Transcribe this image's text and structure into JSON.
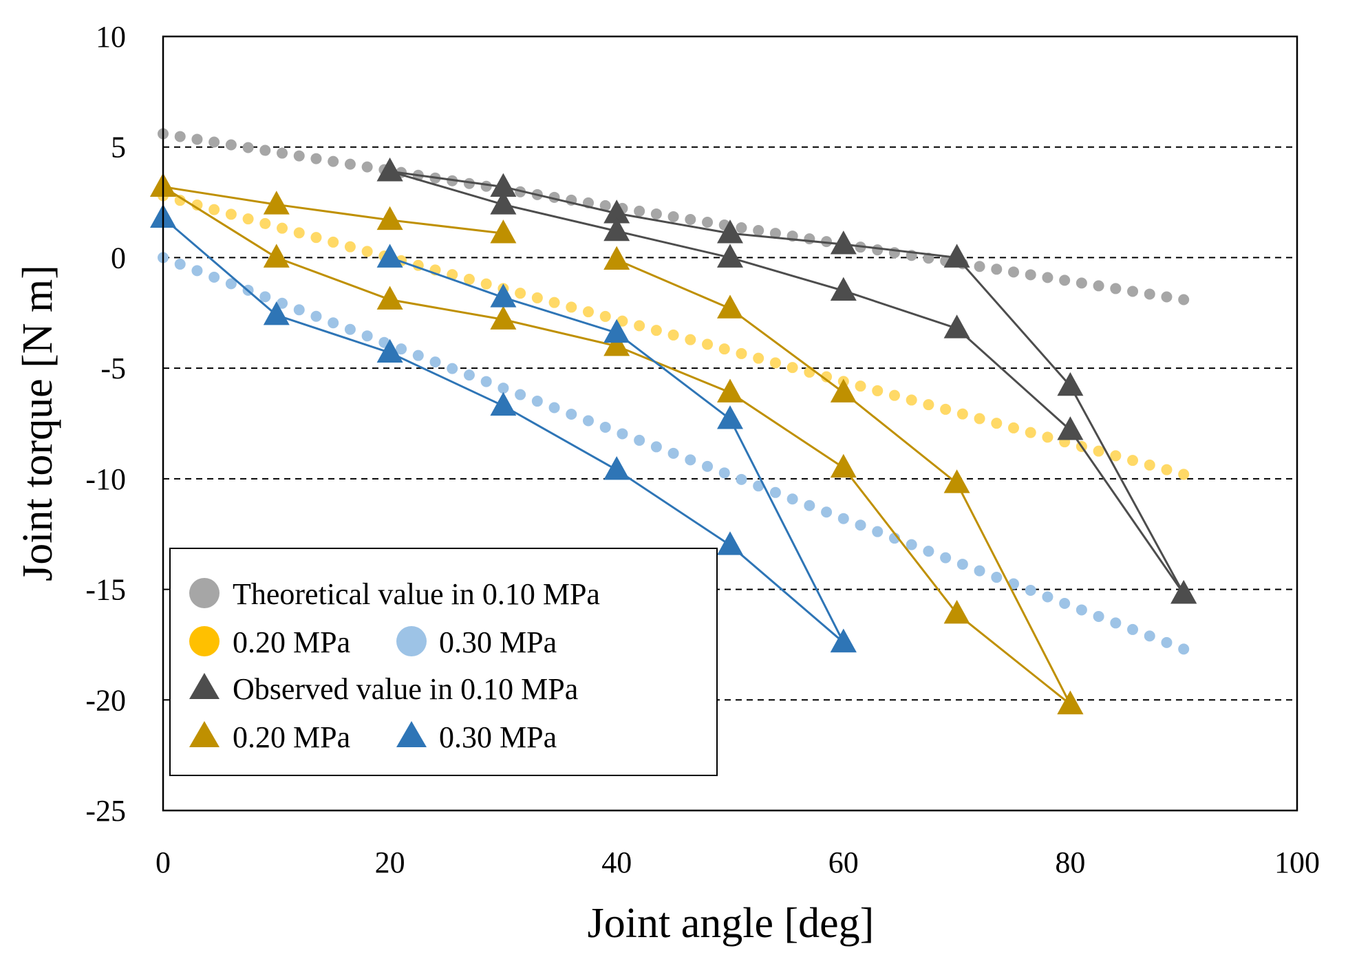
{
  "chart_data": {
    "type": "scatter",
    "xlabel": "Joint angle [deg]",
    "ylabel": "Joint torque [N m]",
    "xlim": [
      0,
      100
    ],
    "ylim": [
      -25,
      10
    ],
    "xticks": [
      0,
      20,
      40,
      60,
      80,
      100
    ],
    "yticks": [
      10,
      5,
      0,
      -5,
      -10,
      -15,
      -20,
      -25
    ],
    "grid": "horizontal-dashed",
    "legend_position": "bottom-left",
    "colors": {
      "theory_010": "#a6a6a6",
      "theory_020": "#ffd966",
      "theory_030": "#9dc3e6",
      "obs_010": "#4d4d4d",
      "obs_020": "#bf9000",
      "obs_030": "#2e75b6"
    },
    "theoretical_series": [
      {
        "name": "Theoretical value in 0.10 MPa",
        "key": "theory_010",
        "x_start": 0,
        "x_end": 90,
        "x_step": 1.5,
        "y_start": 5.6,
        "y_end": -1.9
      },
      {
        "name": "0.20 MPa",
        "key": "theory_020",
        "x_start": 0,
        "x_end": 90,
        "x_step": 1.5,
        "y_start": 2.8,
        "y_end": -9.8
      },
      {
        "name": "0.30 MPa",
        "key": "theory_030",
        "x_start": 0,
        "x_end": 90,
        "x_step": 1.5,
        "y_start": 0.0,
        "y_end": -17.7
      }
    ],
    "observed_series": [
      {
        "name": "Observed value in 0.10 MPa",
        "key": "obs_010",
        "lines": [
          [
            [
              20,
              3.9
            ],
            [
              30,
              3.2
            ],
            [
              40,
              2.0
            ],
            [
              50,
              1.1
            ],
            [
              60,
              0.6
            ],
            [
              70,
              0.0
            ],
            [
              80,
              -5.8
            ],
            [
              90,
              -15.2
            ]
          ],
          [
            [
              20,
              3.9
            ],
            [
              30,
              2.4
            ],
            [
              40,
              1.2
            ],
            [
              50,
              0.0
            ],
            [
              60,
              -1.5
            ],
            [
              70,
              -3.2
            ],
            [
              80,
              -7.8
            ],
            [
              90,
              -15.2
            ]
          ]
        ]
      },
      {
        "name": "0.20 MPa",
        "key": "obs_020",
        "lines": [
          [
            [
              0,
              3.2
            ],
            [
              10,
              2.4
            ],
            [
              20,
              1.7
            ],
            [
              30,
              1.1
            ]
          ],
          [
            [
              40,
              -0.1
            ],
            [
              50,
              -2.3
            ],
            [
              60,
              -6.1
            ],
            [
              70,
              -10.2
            ],
            [
              80,
              -20.2
            ]
          ],
          [
            [
              0,
              3.2
            ],
            [
              10,
              0.0
            ],
            [
              20,
              -1.9
            ],
            [
              30,
              -2.8
            ],
            [
              40,
              -4.0
            ],
            [
              50,
              -6.1
            ],
            [
              60,
              -9.5
            ],
            [
              70,
              -16.1
            ],
            [
              80,
              -20.2
            ]
          ]
        ]
      },
      {
        "name": "0.30 MPa",
        "key": "obs_030",
        "lines": [
          [
            [
              0,
              1.8
            ],
            [
              10,
              -2.6
            ],
            [
              20,
              -4.3
            ],
            [
              30,
              -6.7
            ],
            [
              40,
              -9.6
            ],
            [
              50,
              -13.0
            ],
            [
              60,
              -17.4
            ]
          ],
          [
            [
              20,
              0.0
            ],
            [
              30,
              -1.8
            ],
            [
              40,
              -3.4
            ],
            [
              50,
              -7.3
            ],
            [
              60,
              -17.4
            ]
          ]
        ]
      }
    ],
    "legend": {
      "theory_010_label": "Theoretical value in 0.10 MPa",
      "theory_020_label": "0.20 MPa",
      "theory_030_label": "0.30 MPa",
      "obs_010_label": "Observed value in 0.10 MPa",
      "obs_020_label": "0.20 MPa",
      "obs_030_label": "0.30 MPa"
    }
  }
}
